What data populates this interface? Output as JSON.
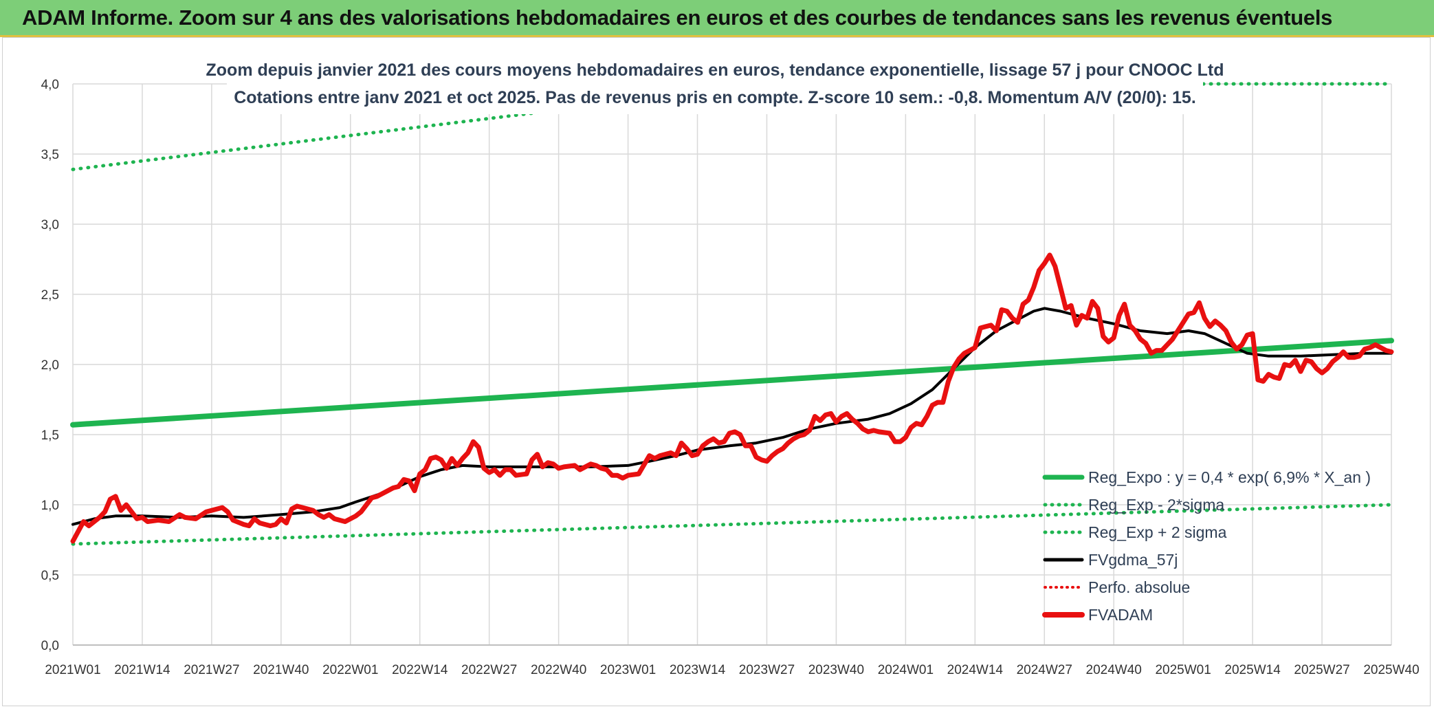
{
  "header": {
    "title": "ADAM Informe. Zoom sur 4 ans des valorisations hebdomadaires en euros et des courbes de tendances sans les revenus éventuels"
  },
  "colors": {
    "banner_bg": "#7dce78",
    "banner_border": "#e0c040",
    "reg_green": "#1eb450",
    "fvadam_red": "#e81010",
    "fvgdma_black": "#000000",
    "perfo_red": "#e81010",
    "grid": "#d9d9d9",
    "axis_text": "#333333",
    "subtitle_text": "#2f3f55"
  },
  "chart_data": {
    "type": "line",
    "title_line1": "Zoom depuis janvier 2021 des cours moyens hebdomadaires en euros, tendance exponentielle, lissage 57 j pour CNOOC Ltd",
    "title_line2": "Cotations entre janv 2021 et oct 2025. Pas de revenus pris en compte. Z-score 10 sem.: -0,8. Momentum A/V (20/0): 15.",
    "ylim": [
      0,
      4.0
    ],
    "y_ticks": [
      "0,0",
      "0,5",
      "1,0",
      "1,5",
      "2,0",
      "2,5",
      "3,0",
      "3,5",
      "4,0"
    ],
    "x_range": [
      0,
      247
    ],
    "x_ticks": [
      {
        "label": "2021W01",
        "x": 0
      },
      {
        "label": "2021W14",
        "x": 13
      },
      {
        "label": "2021W27",
        "x": 26
      },
      {
        "label": "2021W40",
        "x": 39
      },
      {
        "label": "2022W01",
        "x": 52
      },
      {
        "label": "2022W14",
        "x": 65
      },
      {
        "label": "2022W27",
        "x": 78
      },
      {
        "label": "2022W40",
        "x": 91
      },
      {
        "label": "2023W01",
        "x": 104
      },
      {
        "label": "2023W14",
        "x": 117
      },
      {
        "label": "2023W27",
        "x": 130
      },
      {
        "label": "2023W40",
        "x": 143
      },
      {
        "label": "2024W01",
        "x": 156
      },
      {
        "label": "2024W14",
        "x": 169
      },
      {
        "label": "2024W27",
        "x": 182
      },
      {
        "label": "2024W40",
        "x": 195
      },
      {
        "label": "2025W01",
        "x": 208
      },
      {
        "label": "2025W14",
        "x": 221
      },
      {
        "label": "2025W27",
        "x": 234
      },
      {
        "label": "2025W40",
        "x": 247
      }
    ],
    "legend": {
      "position": "bottom-right",
      "entries": [
        "Reg_Expo : y = 0,4 * exp( 6,9% *  X_an )",
        "Reg_Exp - 2*sigma",
        "Reg_Exp + 2 sigma",
        "FVgdma_57j",
        "Perfo. absolue",
        "FVADAM"
      ]
    },
    "series": [
      {
        "name": "Reg_Expo : y = 0,4 * exp( 6,9% *  X_an )",
        "style": "solid-thick",
        "points": [
          [
            0,
            1.57
          ],
          [
            247,
            2.17
          ]
        ]
      },
      {
        "name": "Reg_Exp - 2*sigma",
        "style": "dotted",
        "points": [
          [
            0,
            0.72
          ],
          [
            247,
            1.0
          ]
        ]
      },
      {
        "name": "Reg_Exp + 2 sigma",
        "style": "dotted",
        "points": [
          [
            0,
            3.39
          ],
          [
            88,
            3.8
          ],
          [
            212,
            4.0
          ],
          [
            247,
            4.0
          ]
        ]
      },
      {
        "name": "FVgdma_57j",
        "style": "solid",
        "points": [
          [
            0,
            0.86
          ],
          [
            4,
            0.9
          ],
          [
            8,
            0.92
          ],
          [
            13,
            0.92
          ],
          [
            20,
            0.91
          ],
          [
            26,
            0.92
          ],
          [
            32,
            0.91
          ],
          [
            39,
            0.93
          ],
          [
            45,
            0.95
          ],
          [
            50,
            0.98
          ],
          [
            53,
            1.02
          ],
          [
            57,
            1.07
          ],
          [
            61,
            1.13
          ],
          [
            65,
            1.2
          ],
          [
            69,
            1.25
          ],
          [
            73,
            1.28
          ],
          [
            78,
            1.27
          ],
          [
            84,
            1.27
          ],
          [
            91,
            1.27
          ],
          [
            97,
            1.27
          ],
          [
            104,
            1.28
          ],
          [
            108,
            1.31
          ],
          [
            113,
            1.35
          ],
          [
            117,
            1.39
          ],
          [
            123,
            1.42
          ],
          [
            128,
            1.44
          ],
          [
            133,
            1.48
          ],
          [
            138,
            1.54
          ],
          [
            143,
            1.58
          ],
          [
            149,
            1.61
          ],
          [
            153,
            1.65
          ],
          [
            157,
            1.72
          ],
          [
            161,
            1.82
          ],
          [
            165,
            1.97
          ],
          [
            169,
            2.12
          ],
          [
            173,
            2.24
          ],
          [
            177,
            2.32
          ],
          [
            180,
            2.38
          ],
          [
            182,
            2.4
          ],
          [
            185,
            2.38
          ],
          [
            190,
            2.33
          ],
          [
            195,
            2.29
          ],
          [
            200,
            2.24
          ],
          [
            205,
            2.22
          ],
          [
            209,
            2.24
          ],
          [
            212,
            2.22
          ],
          [
            216,
            2.15
          ],
          [
            220,
            2.08
          ],
          [
            224,
            2.06
          ],
          [
            230,
            2.06
          ],
          [
            236,
            2.07
          ],
          [
            242,
            2.08
          ],
          [
            247,
            2.08
          ]
        ]
      },
      {
        "name": "FVADAM",
        "style": "solid-thick",
        "points": [
          [
            0,
            0.74
          ],
          [
            2,
            0.88
          ],
          [
            3,
            0.85
          ],
          [
            5,
            0.91
          ],
          [
            6,
            0.95
          ],
          [
            7,
            1.04
          ],
          [
            8,
            1.06
          ],
          [
            9,
            0.96
          ],
          [
            10,
            1.0
          ],
          [
            11,
            0.95
          ],
          [
            12,
            0.9
          ],
          [
            13,
            0.91
          ],
          [
            14,
            0.88
          ],
          [
            16,
            0.89
          ],
          [
            18,
            0.88
          ],
          [
            20,
            0.93
          ],
          [
            21,
            0.91
          ],
          [
            23,
            0.9
          ],
          [
            25,
            0.95
          ],
          [
            27,
            0.97
          ],
          [
            28,
            0.98
          ],
          [
            29,
            0.95
          ],
          [
            30,
            0.89
          ],
          [
            32,
            0.86
          ],
          [
            33,
            0.85
          ],
          [
            34,
            0.9
          ],
          [
            35,
            0.87
          ],
          [
            37,
            0.85
          ],
          [
            38,
            0.86
          ],
          [
            39,
            0.9
          ],
          [
            40,
            0.87
          ],
          [
            41,
            0.97
          ],
          [
            42,
            0.99
          ],
          [
            44,
            0.97
          ],
          [
            45,
            0.96
          ],
          [
            46,
            0.93
          ],
          [
            47,
            0.91
          ],
          [
            48,
            0.93
          ],
          [
            49,
            0.9
          ],
          [
            51,
            0.88
          ],
          [
            53,
            0.92
          ],
          [
            54,
            0.95
          ],
          [
            56,
            1.05
          ],
          [
            57,
            1.06
          ],
          [
            59,
            1.1
          ],
          [
            60,
            1.12
          ],
          [
            61,
            1.13
          ],
          [
            62,
            1.18
          ],
          [
            63,
            1.17
          ],
          [
            64,
            1.1
          ],
          [
            65,
            1.22
          ],
          [
            66,
            1.25
          ],
          [
            67,
            1.33
          ],
          [
            68,
            1.34
          ],
          [
            69,
            1.32
          ],
          [
            70,
            1.26
          ],
          [
            71,
            1.33
          ],
          [
            72,
            1.28
          ],
          [
            73,
            1.33
          ],
          [
            74,
            1.37
          ],
          [
            75,
            1.45
          ],
          [
            76,
            1.41
          ],
          [
            77,
            1.26
          ],
          [
            78,
            1.23
          ],
          [
            79,
            1.25
          ],
          [
            80,
            1.21
          ],
          [
            81,
            1.25
          ],
          [
            82,
            1.25
          ],
          [
            83,
            1.21
          ],
          [
            85,
            1.22
          ],
          [
            86,
            1.32
          ],
          [
            87,
            1.36
          ],
          [
            88,
            1.27
          ],
          [
            89,
            1.3
          ],
          [
            90,
            1.29
          ],
          [
            91,
            1.26
          ],
          [
            92,
            1.27
          ],
          [
            94,
            1.28
          ],
          [
            95,
            1.25
          ],
          [
            96,
            1.27
          ],
          [
            97,
            1.29
          ],
          [
            98,
            1.28
          ],
          [
            99,
            1.26
          ],
          [
            100,
            1.25
          ],
          [
            101,
            1.21
          ],
          [
            102,
            1.21
          ],
          [
            103,
            1.19
          ],
          [
            104,
            1.21
          ],
          [
            106,
            1.22
          ],
          [
            108,
            1.35
          ],
          [
            109,
            1.33
          ],
          [
            110,
            1.35
          ],
          [
            112,
            1.37
          ],
          [
            113,
            1.35
          ],
          [
            114,
            1.44
          ],
          [
            115,
            1.4
          ],
          [
            116,
            1.35
          ],
          [
            117,
            1.36
          ],
          [
            118,
            1.42
          ],
          [
            119,
            1.45
          ],
          [
            120,
            1.47
          ],
          [
            121,
            1.44
          ],
          [
            122,
            1.45
          ],
          [
            123,
            1.51
          ],
          [
            124,
            1.52
          ],
          [
            125,
            1.5
          ],
          [
            126,
            1.42
          ],
          [
            127,
            1.42
          ],
          [
            128,
            1.34
          ],
          [
            129,
            1.32
          ],
          [
            130,
            1.31
          ],
          [
            131,
            1.35
          ],
          [
            132,
            1.38
          ],
          [
            133,
            1.4
          ],
          [
            134,
            1.44
          ],
          [
            135,
            1.47
          ],
          [
            136,
            1.49
          ],
          [
            137,
            1.5
          ],
          [
            138,
            1.53
          ],
          [
            139,
            1.63
          ],
          [
            140,
            1.6
          ],
          [
            141,
            1.64
          ],
          [
            142,
            1.65
          ],
          [
            143,
            1.59
          ],
          [
            144,
            1.63
          ],
          [
            145,
            1.65
          ],
          [
            146,
            1.61
          ],
          [
            147,
            1.58
          ],
          [
            148,
            1.54
          ],
          [
            149,
            1.52
          ],
          [
            150,
            1.53
          ],
          [
            151,
            1.52
          ],
          [
            153,
            1.51
          ],
          [
            154,
            1.45
          ],
          [
            155,
            1.45
          ],
          [
            156,
            1.48
          ],
          [
            157,
            1.55
          ],
          [
            158,
            1.58
          ],
          [
            159,
            1.57
          ],
          [
            160,
            1.63
          ],
          [
            161,
            1.71
          ],
          [
            162,
            1.73
          ],
          [
            163,
            1.73
          ],
          [
            164,
            1.88
          ],
          [
            165,
            1.98
          ],
          [
            166,
            2.04
          ],
          [
            167,
            2.08
          ],
          [
            168,
            2.1
          ],
          [
            169,
            2.12
          ],
          [
            170,
            2.26
          ],
          [
            171,
            2.27
          ],
          [
            172,
            2.28
          ],
          [
            173,
            2.24
          ],
          [
            174,
            2.39
          ],
          [
            175,
            2.38
          ],
          [
            176,
            2.33
          ],
          [
            177,
            2.3
          ],
          [
            178,
            2.43
          ],
          [
            179,
            2.46
          ],
          [
            180,
            2.55
          ],
          [
            181,
            2.67
          ],
          [
            182,
            2.72
          ],
          [
            183,
            2.78
          ],
          [
            184,
            2.7
          ],
          [
            185,
            2.55
          ],
          [
            186,
            2.4
          ],
          [
            187,
            2.42
          ],
          [
            188,
            2.28
          ],
          [
            189,
            2.35
          ],
          [
            190,
            2.33
          ],
          [
            191,
            2.45
          ],
          [
            192,
            2.4
          ],
          [
            193,
            2.2
          ],
          [
            194,
            2.16
          ],
          [
            195,
            2.19
          ],
          [
            196,
            2.35
          ],
          [
            197,
            2.43
          ],
          [
            198,
            2.28
          ],
          [
            199,
            2.24
          ],
          [
            200,
            2.18
          ],
          [
            201,
            2.15
          ],
          [
            202,
            2.08
          ],
          [
            203,
            2.1
          ],
          [
            204,
            2.1
          ],
          [
            205,
            2.14
          ],
          [
            206,
            2.18
          ],
          [
            207,
            2.24
          ],
          [
            208,
            2.3
          ],
          [
            209,
            2.36
          ],
          [
            210,
            2.37
          ],
          [
            211,
            2.44
          ],
          [
            212,
            2.33
          ],
          [
            213,
            2.27
          ],
          [
            214,
            2.31
          ],
          [
            215,
            2.28
          ],
          [
            216,
            2.24
          ],
          [
            217,
            2.16
          ],
          [
            218,
            2.11
          ],
          [
            219,
            2.14
          ],
          [
            220,
            2.21
          ],
          [
            221,
            2.22
          ],
          [
            222,
            1.89
          ],
          [
            223,
            1.88
          ],
          [
            224,
            1.93
          ],
          [
            225,
            1.91
          ],
          [
            226,
            1.9
          ],
          [
            227,
            2.0
          ],
          [
            228,
            1.99
          ],
          [
            229,
            2.03
          ],
          [
            230,
            1.95
          ],
          [
            231,
            2.03
          ],
          [
            232,
            2.02
          ],
          [
            233,
            1.97
          ],
          [
            234,
            1.94
          ],
          [
            235,
            1.97
          ],
          [
            236,
            2.02
          ],
          [
            237,
            2.05
          ],
          [
            238,
            2.09
          ],
          [
            239,
            2.05
          ],
          [
            240,
            2.05
          ],
          [
            241,
            2.06
          ],
          [
            242,
            2.11
          ],
          [
            243,
            2.12
          ],
          [
            244,
            2.14
          ],
          [
            245,
            2.12
          ],
          [
            246,
            2.1
          ],
          [
            247,
            2.09
          ]
        ]
      }
    ]
  }
}
